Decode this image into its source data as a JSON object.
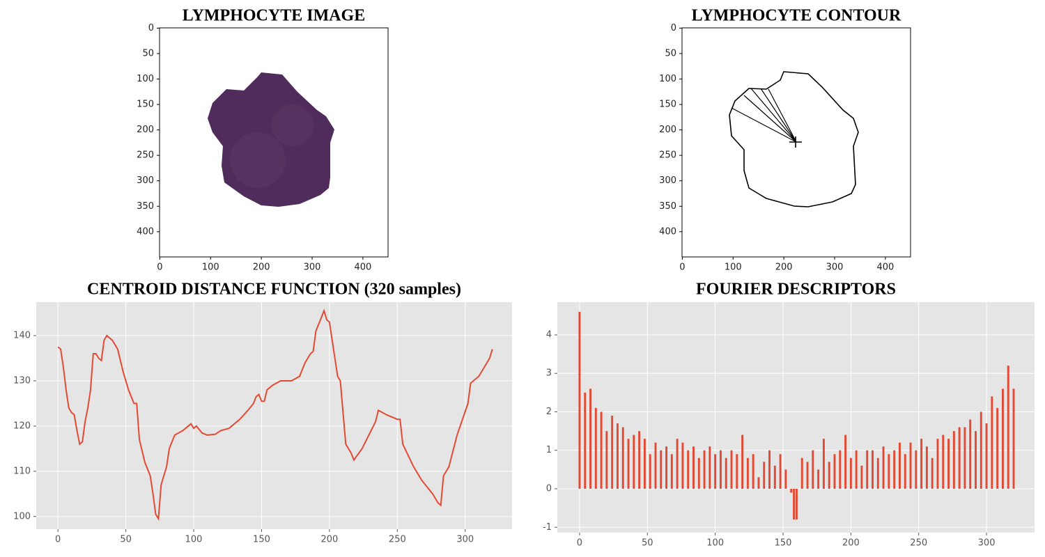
{
  "chart_data": [
    {
      "type": "image",
      "title": "LYMPHOCYTE IMAGE",
      "xlim": [
        -0.5,
        449.5
      ],
      "ylim": [
        449.5,
        -0.5
      ],
      "xticks": [
        0,
        100,
        200,
        300,
        400
      ],
      "yticks": [
        0,
        50,
        100,
        150,
        200,
        250,
        300,
        350,
        400
      ],
      "grid": false
    },
    {
      "type": "contour",
      "title": "LYMPHOCYTE CONTOUR",
      "xlim": [
        -0.5,
        449.5
      ],
      "ylim": [
        449.5,
        -0.5
      ],
      "xticks": [
        0,
        100,
        200,
        300,
        400
      ],
      "yticks": [
        0,
        50,
        100,
        150,
        200,
        250,
        300,
        350,
        400
      ],
      "grid": false
    },
    {
      "type": "line",
      "title": "CENTROID DISTANCE FUNCTION  (320 samples)",
      "color": "#e24a33",
      "x": [
        0,
        2,
        4,
        6,
        8,
        10,
        12,
        14,
        16,
        18,
        20,
        22,
        24,
        26,
        28,
        30,
        32,
        34,
        36,
        38,
        40,
        44,
        48,
        52,
        56,
        58,
        60,
        64,
        68,
        70,
        72,
        74,
        76,
        80,
        82,
        86,
        92,
        96,
        98,
        100,
        102,
        106,
        110,
        116,
        120,
        126,
        134,
        140,
        144,
        146,
        148,
        150,
        152,
        154,
        158,
        164,
        172,
        178,
        182,
        186,
        188,
        190,
        194,
        196,
        198,
        200,
        204,
        206,
        208,
        212,
        216,
        218,
        224,
        234,
        236,
        242,
        250,
        252,
        254,
        262,
        268,
        276,
        280,
        282,
        284,
        288,
        294,
        302,
        304,
        310,
        314,
        318,
        320
      ],
      "values": [
        137.5,
        137,
        133,
        128,
        124,
        123,
        122.5,
        119,
        116,
        116.5,
        121,
        124,
        128,
        136,
        136,
        135,
        134.5,
        139,
        140,
        139.5,
        139,
        137,
        132,
        128,
        125,
        125,
        117,
        112,
        109,
        105,
        100.5,
        99.5,
        107,
        111,
        115,
        118,
        119,
        120,
        120.5,
        119.5,
        120,
        118.5,
        118,
        118.2,
        119,
        119.5,
        121.5,
        123.5,
        125,
        126.5,
        127,
        125.5,
        125.5,
        128,
        129,
        130,
        130,
        131,
        134,
        136,
        136.5,
        141,
        144,
        145.5,
        143.5,
        143,
        135,
        131,
        130,
        116,
        114,
        112.5,
        115,
        121,
        123.5,
        122.5,
        121.5,
        121.5,
        116,
        111,
        108,
        105,
        103,
        102.5,
        109,
        111,
        118,
        125,
        129.5,
        131,
        133,
        135,
        137
      ],
      "xlim": [
        -16,
        334.5
      ],
      "ylim": [
        97.2,
        147.4
      ],
      "xticks": [
        0,
        50,
        100,
        150,
        200,
        250,
        300
      ],
      "yticks": [
        100,
        110,
        120,
        130,
        140
      ],
      "grid": true
    },
    {
      "type": "bar",
      "title": "FOURIER DESCRIPTORS",
      "color": "#e24a33",
      "x": [
        0,
        4,
        8,
        12,
        16,
        20,
        24,
        28,
        32,
        36,
        40,
        44,
        48,
        52,
        56,
        60,
        64,
        68,
        72,
        76,
        80,
        84,
        88,
        92,
        96,
        100,
        104,
        108,
        112,
        116,
        120,
        124,
        128,
        132,
        136,
        140,
        144,
        148,
        152,
        156,
        158,
        160,
        164,
        168,
        172,
        176,
        180,
        184,
        188,
        192,
        196,
        200,
        204,
        208,
        212,
        216,
        220,
        224,
        228,
        232,
        236,
        240,
        244,
        248,
        252,
        256,
        260,
        264,
        268,
        272,
        276,
        280,
        284,
        288,
        292,
        296,
        300,
        304,
        308,
        312,
        316,
        320
      ],
      "values": [
        4.6,
        2.5,
        2.6,
        2.1,
        2.0,
        1.5,
        1.9,
        1.7,
        1.6,
        1.3,
        1.4,
        1.5,
        1.3,
        0.9,
        1.2,
        1.0,
        1.1,
        0.9,
        1.3,
        1.2,
        1.0,
        1.1,
        0.8,
        1.0,
        1.1,
        0.9,
        1.0,
        0.8,
        1.0,
        0.9,
        1.4,
        0.8,
        0.9,
        0.3,
        0.7,
        1.0,
        0.6,
        0.9,
        0.5,
        -0.1,
        -0.8,
        -0.8,
        0.8,
        0.7,
        1.0,
        0.5,
        1.3,
        0.7,
        0.9,
        1.0,
        1.4,
        0.8,
        1.0,
        0.6,
        1.0,
        1.0,
        0.8,
        1.1,
        0.9,
        1.0,
        1.2,
        0.9,
        1.2,
        1.0,
        1.3,
        1.1,
        0.8,
        1.3,
        1.4,
        1.3,
        1.5,
        1.6,
        1.6,
        1.8,
        1.5,
        2.0,
        1.7,
        2.4,
        2.1,
        2.6,
        3.2,
        2.6
      ],
      "xlim": [
        -16.4,
        335.4
      ],
      "ylim": [
        -1.14,
        4.85
      ],
      "xticks": [
        0,
        50,
        100,
        150,
        200,
        250,
        300
      ],
      "yticks": [
        -1,
        0,
        1,
        2,
        3,
        4
      ],
      "grid": true
    }
  ]
}
